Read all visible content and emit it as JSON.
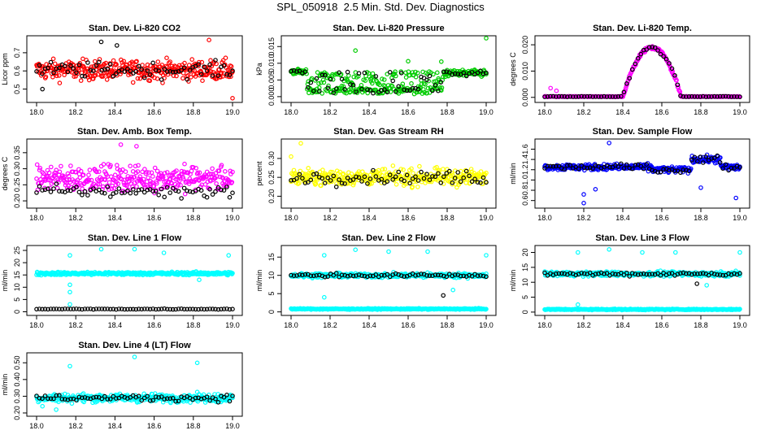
{
  "main_title": "SPL_050918  2.5 Min. Std. Dev. Diagnostics",
  "colors": {
    "black": "#000000",
    "red": "#ff0000",
    "green": "#00cc00",
    "magenta": "#ff00ff",
    "yellow": "#ffff00",
    "blue": "#0000ff",
    "cyan": "#00ffff"
  },
  "chart_data": [
    {
      "type": "scatter",
      "title": "Stan. Dev. Li-820 CO2",
      "ylabel": "Licor ppm",
      "color": "#ff0000",
      "xlim": [
        18.0,
        19.0
      ],
      "ylim": [
        0.44,
        0.78
      ],
      "xticks": [
        "18.0",
        "18.2",
        "18.4",
        "18.6",
        "18.8",
        "19.0"
      ],
      "yticks": [
        "0.5",
        "0.6",
        "0.7"
      ],
      "yticks_pos": [
        0.5,
        0.6,
        0.7
      ],
      "series": [
        {
          "color": "#ff0000",
          "band": [
            0.52,
            0.7
          ],
          "center": 0.605
        },
        {
          "color": "#000000",
          "band": [
            0.54,
            0.68
          ],
          "center": 0.605
        }
      ],
      "outliers": [
        {
          "x": 18.33,
          "y": 0.76,
          "c": "#000000"
        },
        {
          "x": 18.41,
          "y": 0.74,
          "c": "#000000"
        },
        {
          "x": 18.88,
          "y": 0.77,
          "c": "#ff0000"
        },
        {
          "x": 19.0,
          "y": 0.45,
          "c": "#ff0000"
        },
        {
          "x": 18.03,
          "y": 0.5,
          "c": "#000000"
        }
      ]
    },
    {
      "type": "scatter",
      "title": "Stan. Dev. Li-820 Pressure",
      "ylabel": "kPa",
      "color": "#00cc00",
      "xlim": [
        18.0,
        19.0
      ],
      "ylim": [
        -0.001,
        0.0175
      ],
      "xticks": [
        "18.0",
        "18.2",
        "18.4",
        "18.6",
        "18.8",
        "19.0"
      ],
      "yticks": [
        "0.000",
        "0.005",
        "0.010",
        "0.015"
      ],
      "yticks_pos": [
        0.0,
        0.005,
        0.01,
        0.015
      ],
      "series": [
        {
          "color": "#00cc00",
          "profile": "pressure"
        },
        {
          "color": "#000000",
          "profile": "pressure_dark"
        }
      ],
      "outliers": [
        {
          "x": 18.33,
          "y": 0.0138,
          "c": "#00cc00"
        },
        {
          "x": 19.0,
          "y": 0.0175,
          "c": "#00cc00"
        },
        {
          "x": 18.6,
          "y": 0.0106,
          "c": "#00cc00"
        },
        {
          "x": 18.77,
          "y": 0.0105,
          "c": "#00cc00"
        }
      ]
    },
    {
      "type": "scatter",
      "title": "Stan. Dev. Li-820 Temp.",
      "ylabel": "degrees C",
      "color": "#ff00ff",
      "xlim": [
        18.0,
        19.0
      ],
      "ylim": [
        -0.001,
        0.0225
      ],
      "xticks": [
        "18.0",
        "18.2",
        "18.4",
        "18.6",
        "18.8",
        "19.0"
      ],
      "yticks": [
        "0.000",
        "0.010",
        "0.020"
      ],
      "yticks_pos": [
        0.0,
        0.01,
        0.02
      ],
      "series": [
        {
          "color": "#ff00ff",
          "profile": "temp"
        },
        {
          "color": "#000000",
          "profile": "temp_dark"
        }
      ],
      "outliers": [
        {
          "x": 18.03,
          "y": 0.0035,
          "c": "#ff00ff"
        },
        {
          "x": 18.06,
          "y": 0.0025,
          "c": "#ff00ff"
        }
      ]
    },
    {
      "type": "scatter",
      "title": "Stan. Dev. Amb. Box Temp.",
      "ylabel": "degrees C",
      "color": "#ff00ff",
      "xlim": [
        18.0,
        19.0
      ],
      "ylim": [
        0.185,
        0.385
      ],
      "xticks": [
        "18.0",
        "18.2",
        "18.4",
        "18.6",
        "18.8",
        "19.0"
      ],
      "yticks": [
        "0.20",
        "0.25",
        "0.30",
        "0.35"
      ],
      "yticks_pos": [
        0.2,
        0.25,
        0.3,
        0.35
      ],
      "series": [
        {
          "color": "#ff00ff",
          "band": [
            0.21,
            0.34
          ],
          "center": 0.27
        },
        {
          "color": "#000000",
          "band": [
            0.2,
            0.26
          ],
          "center": 0.23
        }
      ],
      "outliers": [
        {
          "x": 18.43,
          "y": 0.375,
          "c": "#ff00ff"
        },
        {
          "x": 18.51,
          "y": 0.37,
          "c": "#ff00ff"
        }
      ]
    },
    {
      "type": "scatter",
      "title": "Stan. Dev. Gas Stream RH",
      "ylabel": "percent",
      "color": "#ffff00",
      "xlim": [
        18.0,
        19.0
      ],
      "ylim": [
        0.175,
        0.345
      ],
      "xticks": [
        "18.0",
        "18.2",
        "18.4",
        "18.6",
        "18.8",
        "19.0"
      ],
      "yticks": [
        "0.20",
        "0.25",
        "0.30"
      ],
      "yticks_pos": [
        0.2,
        0.25,
        0.3
      ],
      "series": [
        {
          "color": "#ffff00",
          "band": [
            0.215,
            0.285
          ],
          "center": 0.25
        },
        {
          "color": "#000000",
          "band": [
            0.225,
            0.28
          ],
          "center": 0.25
        }
      ],
      "outliers": [
        {
          "x": 18.05,
          "y": 0.34,
          "c": "#ffff00"
        },
        {
          "x": 18.0,
          "y": 0.305,
          "c": "#ffff00"
        }
      ]
    },
    {
      "type": "scatter",
      "title": "Stan. Dev. Sample Flow",
      "ylabel": "ml/min",
      "color": "#0000ff",
      "xlim": [
        18.0,
        19.0
      ],
      "ylim": [
        0.5,
        1.75
      ],
      "xticks": [
        "18.0",
        "18.2",
        "18.4",
        "18.6",
        "18.8",
        "19.0"
      ],
      "yticks": [
        "0.6",
        "0.8",
        "1.0",
        "1.2",
        "1.4",
        "1.6"
      ],
      "yticks_pos": [
        0.6,
        0.8,
        1.0,
        1.2,
        1.4,
        1.6
      ],
      "series": [
        {
          "color": "#0000ff",
          "profile": "flow"
        },
        {
          "color": "#000000",
          "profile": "flow_dark"
        }
      ],
      "outliers": [
        {
          "x": 18.33,
          "y": 1.72,
          "c": "#0000ff"
        },
        {
          "x": 18.2,
          "y": 0.72,
          "c": "#0000ff"
        },
        {
          "x": 18.2,
          "y": 0.55,
          "c": "#0000ff"
        },
        {
          "x": 18.26,
          "y": 0.82,
          "c": "#0000ff"
        },
        {
          "x": 18.8,
          "y": 0.85,
          "c": "#0000ff"
        },
        {
          "x": 18.98,
          "y": 0.65,
          "c": "#0000ff"
        }
      ]
    },
    {
      "type": "scatter",
      "title": "Stan. Dev. Line 1 Flow",
      "ylabel": "ml/min",
      "color": "#00ffff",
      "xlim": [
        18.0,
        19.0
      ],
      "ylim": [
        -0.5,
        26
      ],
      "xticks": [
        "18.0",
        "18.2",
        "18.4",
        "18.6",
        "18.8",
        "19.0"
      ],
      "yticks": [
        "0",
        "5",
        "10",
        "15",
        "20",
        "25"
      ],
      "yticks_pos": [
        0,
        5,
        10,
        15,
        20,
        25
      ],
      "series": [
        {
          "color": "#00ffff",
          "band": [
            14.6,
            16.6
          ],
          "center": 15.6
        },
        {
          "color": "#000000",
          "band": [
            0.9,
            1.4
          ],
          "center": 1.1
        }
      ],
      "outliers": [
        {
          "x": 18.17,
          "y": 23,
          "c": "#00ffff"
        },
        {
          "x": 18.17,
          "y": 11,
          "c": "#00ffff"
        },
        {
          "x": 18.17,
          "y": 8,
          "c": "#00ffff"
        },
        {
          "x": 18.17,
          "y": 3,
          "c": "#00ffff"
        },
        {
          "x": 18.33,
          "y": 25.5,
          "c": "#00ffff"
        },
        {
          "x": 18.5,
          "y": 25.5,
          "c": "#00ffff"
        },
        {
          "x": 18.65,
          "y": 24,
          "c": "#00ffff"
        },
        {
          "x": 18.98,
          "y": 23,
          "c": "#00ffff"
        },
        {
          "x": 18.83,
          "y": 13,
          "c": "#00ffff"
        }
      ]
    },
    {
      "type": "scatter",
      "title": "Stan. Dev. Line 2 Flow",
      "ylabel": "ml/min",
      "color": "#00ffff",
      "xlim": [
        18.0,
        19.0
      ],
      "ylim": [
        -0.3,
        17.5
      ],
      "xticks": [
        "18.0",
        "18.2",
        "18.4",
        "18.6",
        "18.8",
        "19.0"
      ],
      "yticks": [
        "0",
        "5",
        "10",
        "15"
      ],
      "yticks_pos": [
        0,
        5,
        10,
        15
      ],
      "series": [
        {
          "color": "#00ffff",
          "band": [
            9.0,
            11.0
          ],
          "center": 10.0
        },
        {
          "color": "#000000",
          "band": [
            9.2,
            10.8
          ],
          "center": 10.0
        },
        {
          "color": "#00ffff",
          "band": [
            0.6,
            1.1
          ],
          "center": 0.8
        }
      ],
      "outliers": [
        {
          "x": 18.17,
          "y": 15.5,
          "c": "#00ffff"
        },
        {
          "x": 18.33,
          "y": 17,
          "c": "#00ffff"
        },
        {
          "x": 18.5,
          "y": 16.5,
          "c": "#00ffff"
        },
        {
          "x": 18.7,
          "y": 16.5,
          "c": "#00ffff"
        },
        {
          "x": 19.0,
          "y": 15.5,
          "c": "#00ffff"
        },
        {
          "x": 18.78,
          "y": 4.5,
          "c": "#000000"
        },
        {
          "x": 18.17,
          "y": 4,
          "c": "#00ffff"
        },
        {
          "x": 18.83,
          "y": 6,
          "c": "#00ffff"
        }
      ]
    },
    {
      "type": "scatter",
      "title": "Stan. Dev. Line 3 Flow",
      "ylabel": "ml/min",
      "color": "#00ffff",
      "xlim": [
        18.0,
        19.0
      ],
      "ylim": [
        -0.3,
        21.5
      ],
      "xticks": [
        "18.0",
        "18.2",
        "18.4",
        "18.6",
        "18.8",
        "19.0"
      ],
      "yticks": [
        "0",
        "5",
        "10",
        "15",
        "20"
      ],
      "yticks_pos": [
        0,
        5,
        10,
        15,
        20
      ],
      "series": [
        {
          "color": "#00ffff",
          "band": [
            11.5,
            14.0
          ],
          "center": 12.8
        },
        {
          "color": "#000000",
          "band": [
            11.8,
            13.8
          ],
          "center": 12.8
        },
        {
          "color": "#00ffff",
          "band": [
            0.6,
            1.2
          ],
          "center": 0.9
        }
      ],
      "outliers": [
        {
          "x": 18.17,
          "y": 20,
          "c": "#00ffff"
        },
        {
          "x": 18.33,
          "y": 21,
          "c": "#00ffff"
        },
        {
          "x": 18.5,
          "y": 20,
          "c": "#00ffff"
        },
        {
          "x": 18.67,
          "y": 20,
          "c": "#00ffff"
        },
        {
          "x": 19.0,
          "y": 20,
          "c": "#00ffff"
        },
        {
          "x": 18.17,
          "y": 2.5,
          "c": "#00ffff"
        },
        {
          "x": 18.78,
          "y": 9.5,
          "c": "#000000"
        },
        {
          "x": 18.83,
          "y": 9,
          "c": "#00ffff"
        }
      ]
    },
    {
      "type": "scatter",
      "title": "Stan. Dev. Line 4 (LT) Flow",
      "ylabel": "ml/min",
      "color": "#00ffff",
      "xlim": [
        18.0,
        19.0
      ],
      "ylim": [
        0.195,
        0.545
      ],
      "xticks": [
        "18.0",
        "18.2",
        "18.4",
        "18.6",
        "18.8",
        "19.0"
      ],
      "yticks": [
        "0.20",
        "0.30",
        "0.40",
        "0.50"
      ],
      "yticks_pos": [
        0.2,
        0.3,
        0.4,
        0.5
      ],
      "series": [
        {
          "color": "#00ffff",
          "band": [
            0.25,
            0.33
          ],
          "center": 0.29
        },
        {
          "color": "#000000",
          "band": [
            0.26,
            0.32
          ],
          "center": 0.29
        }
      ],
      "outliers": [
        {
          "x": 18.17,
          "y": 0.48,
          "c": "#00ffff"
        },
        {
          "x": 18.5,
          "y": 0.535,
          "c": "#00ffff"
        },
        {
          "x": 18.82,
          "y": 0.5,
          "c": "#00ffff"
        },
        {
          "x": 18.03,
          "y": 0.24,
          "c": "#00ffff"
        },
        {
          "x": 18.1,
          "y": 0.22,
          "c": "#00ffff"
        }
      ]
    }
  ]
}
